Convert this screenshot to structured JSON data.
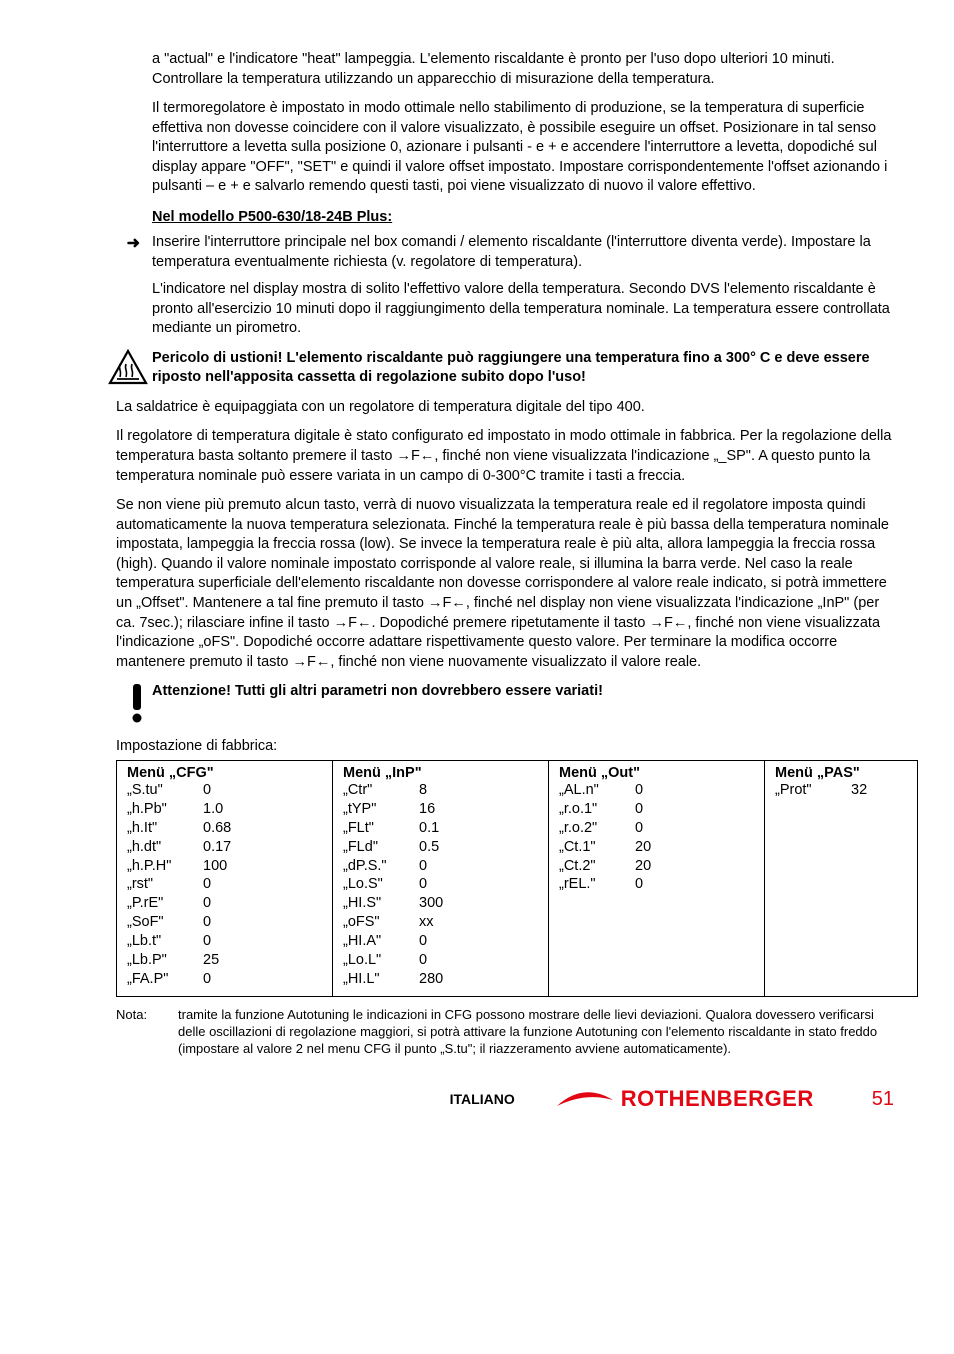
{
  "paragraphs": {
    "p1": "a \"actual\" e l'indicatore \"heat\" lampeggia. L'elemento riscaldante è pronto per l'uso dopo ulteriori 10 minuti. Controllare la temperatura utilizzando un apparecchio di misurazione della temperatura.",
    "p2": "Il termoregolatore è impostato in modo ottimale nello stabilimento di produzione, se la temperatura di superficie effettiva non dovesse coincidere con il valore visualizzato, è possibile eseguire un offset. Posizionare in tal senso l'interruttore a levetta sulla posizione 0, azionare i pulsanti - e + e accendere l'interruttore a levetta, dopodiché sul display appare \"OFF\", \"SET\" e quindi il valore offset impostato. Impostare corrispondentemente l'offset azionando i pulsanti – e + e salvarlo remendo questi tasti, poi viene visualizzato di nuovo il valore effettivo."
  },
  "headings": {
    "h1": "Nel modello P500-630/18-24B Plus:"
  },
  "bullets": {
    "b1a": "Inserire l'interruttore principale nel box comandi / elemento riscaldante (l'interruttore diventa verde). Impostare la temperatura eventualmente richiesta (v. regolatore di temperatura).",
    "b1b": "L'indicatore nel display mostra di solito l'effettivo valore della temperatura. Secondo DVS l'elemento riscaldante è pronto all'esercizio 10 minuti dopo il raggiungimento della temperatura nominale. La temperatura essere controllata mediante un pirometro.",
    "arrow": "➜"
  },
  "warnings": {
    "w1": "Pericolo di ustioni! L'elemento riscaldante può raggiungere una temperatura fino a 300° C e deve essere riposto nell'apposita cassetta di regolazione subito dopo l'uso!"
  },
  "flush": {
    "f1": "La saldatrice è equipaggiata con un regolatore di temperatura digitale del tipo 400.",
    "f2": "Il regolatore di temperatura digitale è stato configurato ed impostato in modo ottimale in fabbrica. Per la regolazione della temperatura basta soltanto premere il tasto →F←, finché non viene visualizzata l'indicazione „_SP\". A questo punto la temperatura nominale può essere variata in un campo di 0-300°C tramite i tasti a freccia.",
    "f3": "Se non viene più premuto alcun tasto, verrà di nuovo visualizzata la temperatura reale ed il regolatore imposta quindi automaticamente la nuova temperatura selezionata. Finché la temperatura reale è più bassa della temperatura nominale impostata, lampeggia la freccia rossa (low). Se invece la temperatura reale è più alta, allora lampeggia la freccia rossa (high). Quando il valore nominale impostato corrisponde al valore reale, si illumina la barra verde. Nel caso la reale temperatura superficiale dell'elemento riscaldante non dovesse corrispondere al valore reale indicato, si potrà immettere un „Offset\". Mantenere a tal fine premuto il tasto →F←, finché nel display non viene visualizzata l'indicazione „InP\" (per ca. 7sec.); rilasciare infine il tasto →F←. Dopodiché premere ripetutamente il tasto →F←, finché non viene visualizzata l'indicazione „oFS\". Dopodiché occorre adattare rispettivamente questo valore. Per terminare la modifica occorre mantenere premuto il tasto →F←, finché non viene nuovamente visualizzato il valore reale."
  },
  "attention": {
    "a1": "Attenzione! Tutti gli altri parametri non dovrebbero essere variati!"
  },
  "table": {
    "intro": "Impostazione di fabbrica:",
    "cfg": {
      "title": "Menü „CFG\"",
      "rows": [
        {
          "k": "„S.tu\"",
          "v": "0"
        },
        {
          "k": "„h.Pb\"",
          "v": "1.0"
        },
        {
          "k": "„h.It\"",
          "v": "0.68"
        },
        {
          "k": "„h.dt\"",
          "v": "0.17"
        },
        {
          "k": "„h.P.H\"",
          "v": "100"
        },
        {
          "k": "„rst\"",
          "v": "0"
        },
        {
          "k": "„P.rE\"",
          "v": "0"
        },
        {
          "k": "„SoF\"",
          "v": "0"
        },
        {
          "k": "„Lb.t\"",
          "v": "0"
        },
        {
          "k": "„Lb.P\"",
          "v": "25"
        },
        {
          "k": "„FA.P\"",
          "v": "0"
        }
      ]
    },
    "inp": {
      "title": "Menü „InP\"",
      "rows": [
        {
          "k": "„Ctr\"",
          "v": "8"
        },
        {
          "k": "„tYP\"",
          "v": "16"
        },
        {
          "k": "„FLt\"",
          "v": "0.1"
        },
        {
          "k": "„FLd\"",
          "v": "0.5"
        },
        {
          "k": "„dP.S.\"",
          "v": "0"
        },
        {
          "k": "„Lo.S\"",
          "v": "0"
        },
        {
          "k": "„HI.S\"",
          "v": "300"
        },
        {
          "k": "„oFS\"",
          "v": "xx"
        },
        {
          "k": "„HI.A\"",
          "v": "0"
        },
        {
          "k": "„Lo.L\"",
          "v": "0"
        },
        {
          "k": "„HI.L\"",
          "v": "280"
        }
      ]
    },
    "out": {
      "title": "Menü „Out\"",
      "rows": [
        {
          "k": "„AL.n\"",
          "v": "0"
        },
        {
          "k": "„r.o.1\"",
          "v": "0"
        },
        {
          "k": "„r.o.2\"",
          "v": "0"
        },
        {
          "k": "„Ct.1\"",
          "v": "20"
        },
        {
          "k": "„Ct.2\"",
          "v": "20"
        },
        {
          "k": "„rEL.\"",
          "v": "0"
        }
      ]
    },
    "pas": {
      "title": "Menü „PAS\"",
      "rows": [
        {
          "k": "„Prot\"",
          "v": "32"
        }
      ]
    }
  },
  "nota": {
    "label": "Nota:",
    "text": "tramite la funzione Autotuning le indicazioni in CFG possono mostrare delle lievi deviazioni. Qualora dovessero verificarsi delle oscillazioni di regolazione maggiori, si potrà attivare la funzione Autotuning con l'elemento riscaldante in stato freddo (impostare al valore 2 nel menu CFG il punto „S.tu\"; il riazzeramento avviene automaticamente)."
  },
  "footer": {
    "lang": "ITALIANO",
    "brand": "ROTHENBERGER",
    "page": "51",
    "brand_color": "#e30613"
  }
}
